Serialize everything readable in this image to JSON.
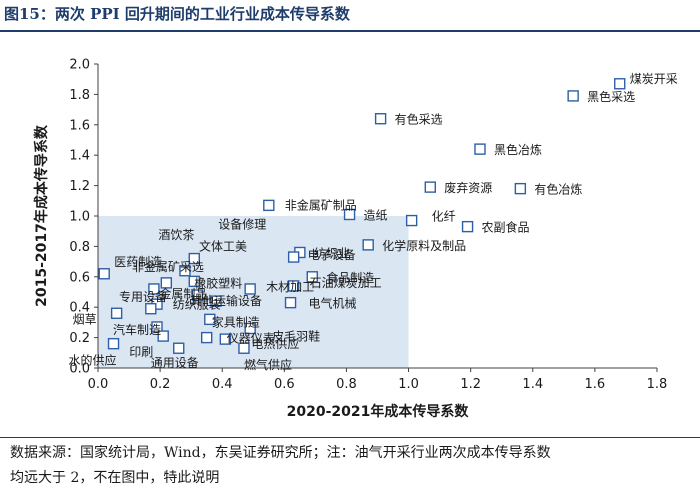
{
  "title": "图15：两次 PPI 回升期间的工业行业成本传导系数",
  "source_lines": [
    "数据来源：国家统计局，Wind，东吴证券研究所；注：油气开采行业两次成本传导系数",
    "均远大于 2，不在图中，特此说明"
  ],
  "colors": {
    "marker": "#2e5fa6",
    "highlight": "#dbe6f3",
    "title": "#1f3d6b"
  },
  "chart_data": {
    "type": "scatter",
    "title": "图15：两次 PPI 回升期间的工业行业成本传导系数",
    "xlabel": "2020-2021年成本传导系数",
    "ylabel": "2015-2017年成本传导系数",
    "xlim": [
      0.0,
      1.8
    ],
    "ylim": [
      0.0,
      2.0
    ],
    "xticks": [
      "0.0",
      "0.2",
      "0.4",
      "0.6",
      "0.8",
      "1.0",
      "1.2",
      "1.4",
      "1.6",
      "1.8"
    ],
    "yticks": [
      "0.0",
      "0.2",
      "0.4",
      "0.6",
      "0.8",
      "1.0",
      "1.2",
      "1.4",
      "1.6",
      "1.8",
      "2.0"
    ],
    "grid": false,
    "highlight_region": {
      "x": [
        0.0,
        1.0
      ],
      "y": [
        0.0,
        1.0
      ]
    },
    "points": [
      {
        "label": "煤炭开采",
        "x": 1.68,
        "y": 1.87
      },
      {
        "label": "黑色采选",
        "x": 1.53,
        "y": 1.79
      },
      {
        "label": "有色采选",
        "x": 0.91,
        "y": 1.64
      },
      {
        "label": "黑色冶炼",
        "x": 1.23,
        "y": 1.44
      },
      {
        "label": "废弃资源",
        "x": 1.07,
        "y": 1.19
      },
      {
        "label": "有色冶炼",
        "x": 1.36,
        "y": 1.18
      },
      {
        "label": "非金属矿制品",
        "x": 0.55,
        "y": 1.07
      },
      {
        "label": "造纸",
        "x": 0.81,
        "y": 1.01
      },
      {
        "label": "化纤",
        "x": 1.01,
        "y": 0.97
      },
      {
        "label": "农副食品",
        "x": 1.19,
        "y": 0.93
      },
      {
        "label": "化学原料及制品",
        "x": 0.87,
        "y": 0.81
      },
      {
        "label": "纺织业",
        "x": 0.65,
        "y": 0.76
      },
      {
        "label": "电子设备",
        "x": 0.63,
        "y": 0.73
      },
      {
        "label": "医药制造",
        "x": 0.02,
        "y": 0.62
      },
      {
        "label": "文体工美",
        "x": 0.28,
        "y": 0.64
      },
      {
        "label": "非金属矿采选",
        "x": 0.18,
        "y": 0.52
      },
      {
        "label": "酒饮茶",
        "x": 0.22,
        "y": 0.56
      },
      {
        "label": "设备修理",
        "x": 0.31,
        "y": 0.72
      },
      {
        "label": "橡胶塑料",
        "x": 0.31,
        "y": 0.57
      },
      {
        "label": "木材加工",
        "x": 0.49,
        "y": 0.52
      },
      {
        "label": "食品制造",
        "x": 0.69,
        "y": 0.6
      },
      {
        "label": "石油煤炭加工",
        "x": 0.63,
        "y": 0.54
      },
      {
        "label": "金属制品",
        "x": 0.32,
        "y": 0.48
      },
      {
        "label": "专用设备",
        "x": 0.19,
        "y": 0.42
      },
      {
        "label": "纺织服装",
        "x": 0.17,
        "y": 0.39
      },
      {
        "label": "其他运输设备",
        "x": 0.38,
        "y": 0.44
      },
      {
        "label": "电气机械",
        "x": 0.62,
        "y": 0.43
      },
      {
        "label": "家具制造",
        "x": 0.36,
        "y": 0.32
      },
      {
        "label": "烟草",
        "x": 0.06,
        "y": 0.36
      },
      {
        "label": "皮毛羽鞋",
        "x": 0.49,
        "y": 0.26
      },
      {
        "label": "汽车制造",
        "x": 0.19,
        "y": 0.27
      },
      {
        "label": "印刷",
        "x": 0.21,
        "y": 0.21
      },
      {
        "label": "仪器仪表",
        "x": 0.35,
        "y": 0.2
      },
      {
        "label": "电热供应",
        "x": 0.41,
        "y": 0.19
      },
      {
        "label": "水的供应",
        "x": 0.05,
        "y": 0.16
      },
      {
        "label": "通用设备",
        "x": 0.26,
        "y": 0.13
      },
      {
        "label": "燃气供应",
        "x": 0.47,
        "y": 0.13
      }
    ]
  }
}
